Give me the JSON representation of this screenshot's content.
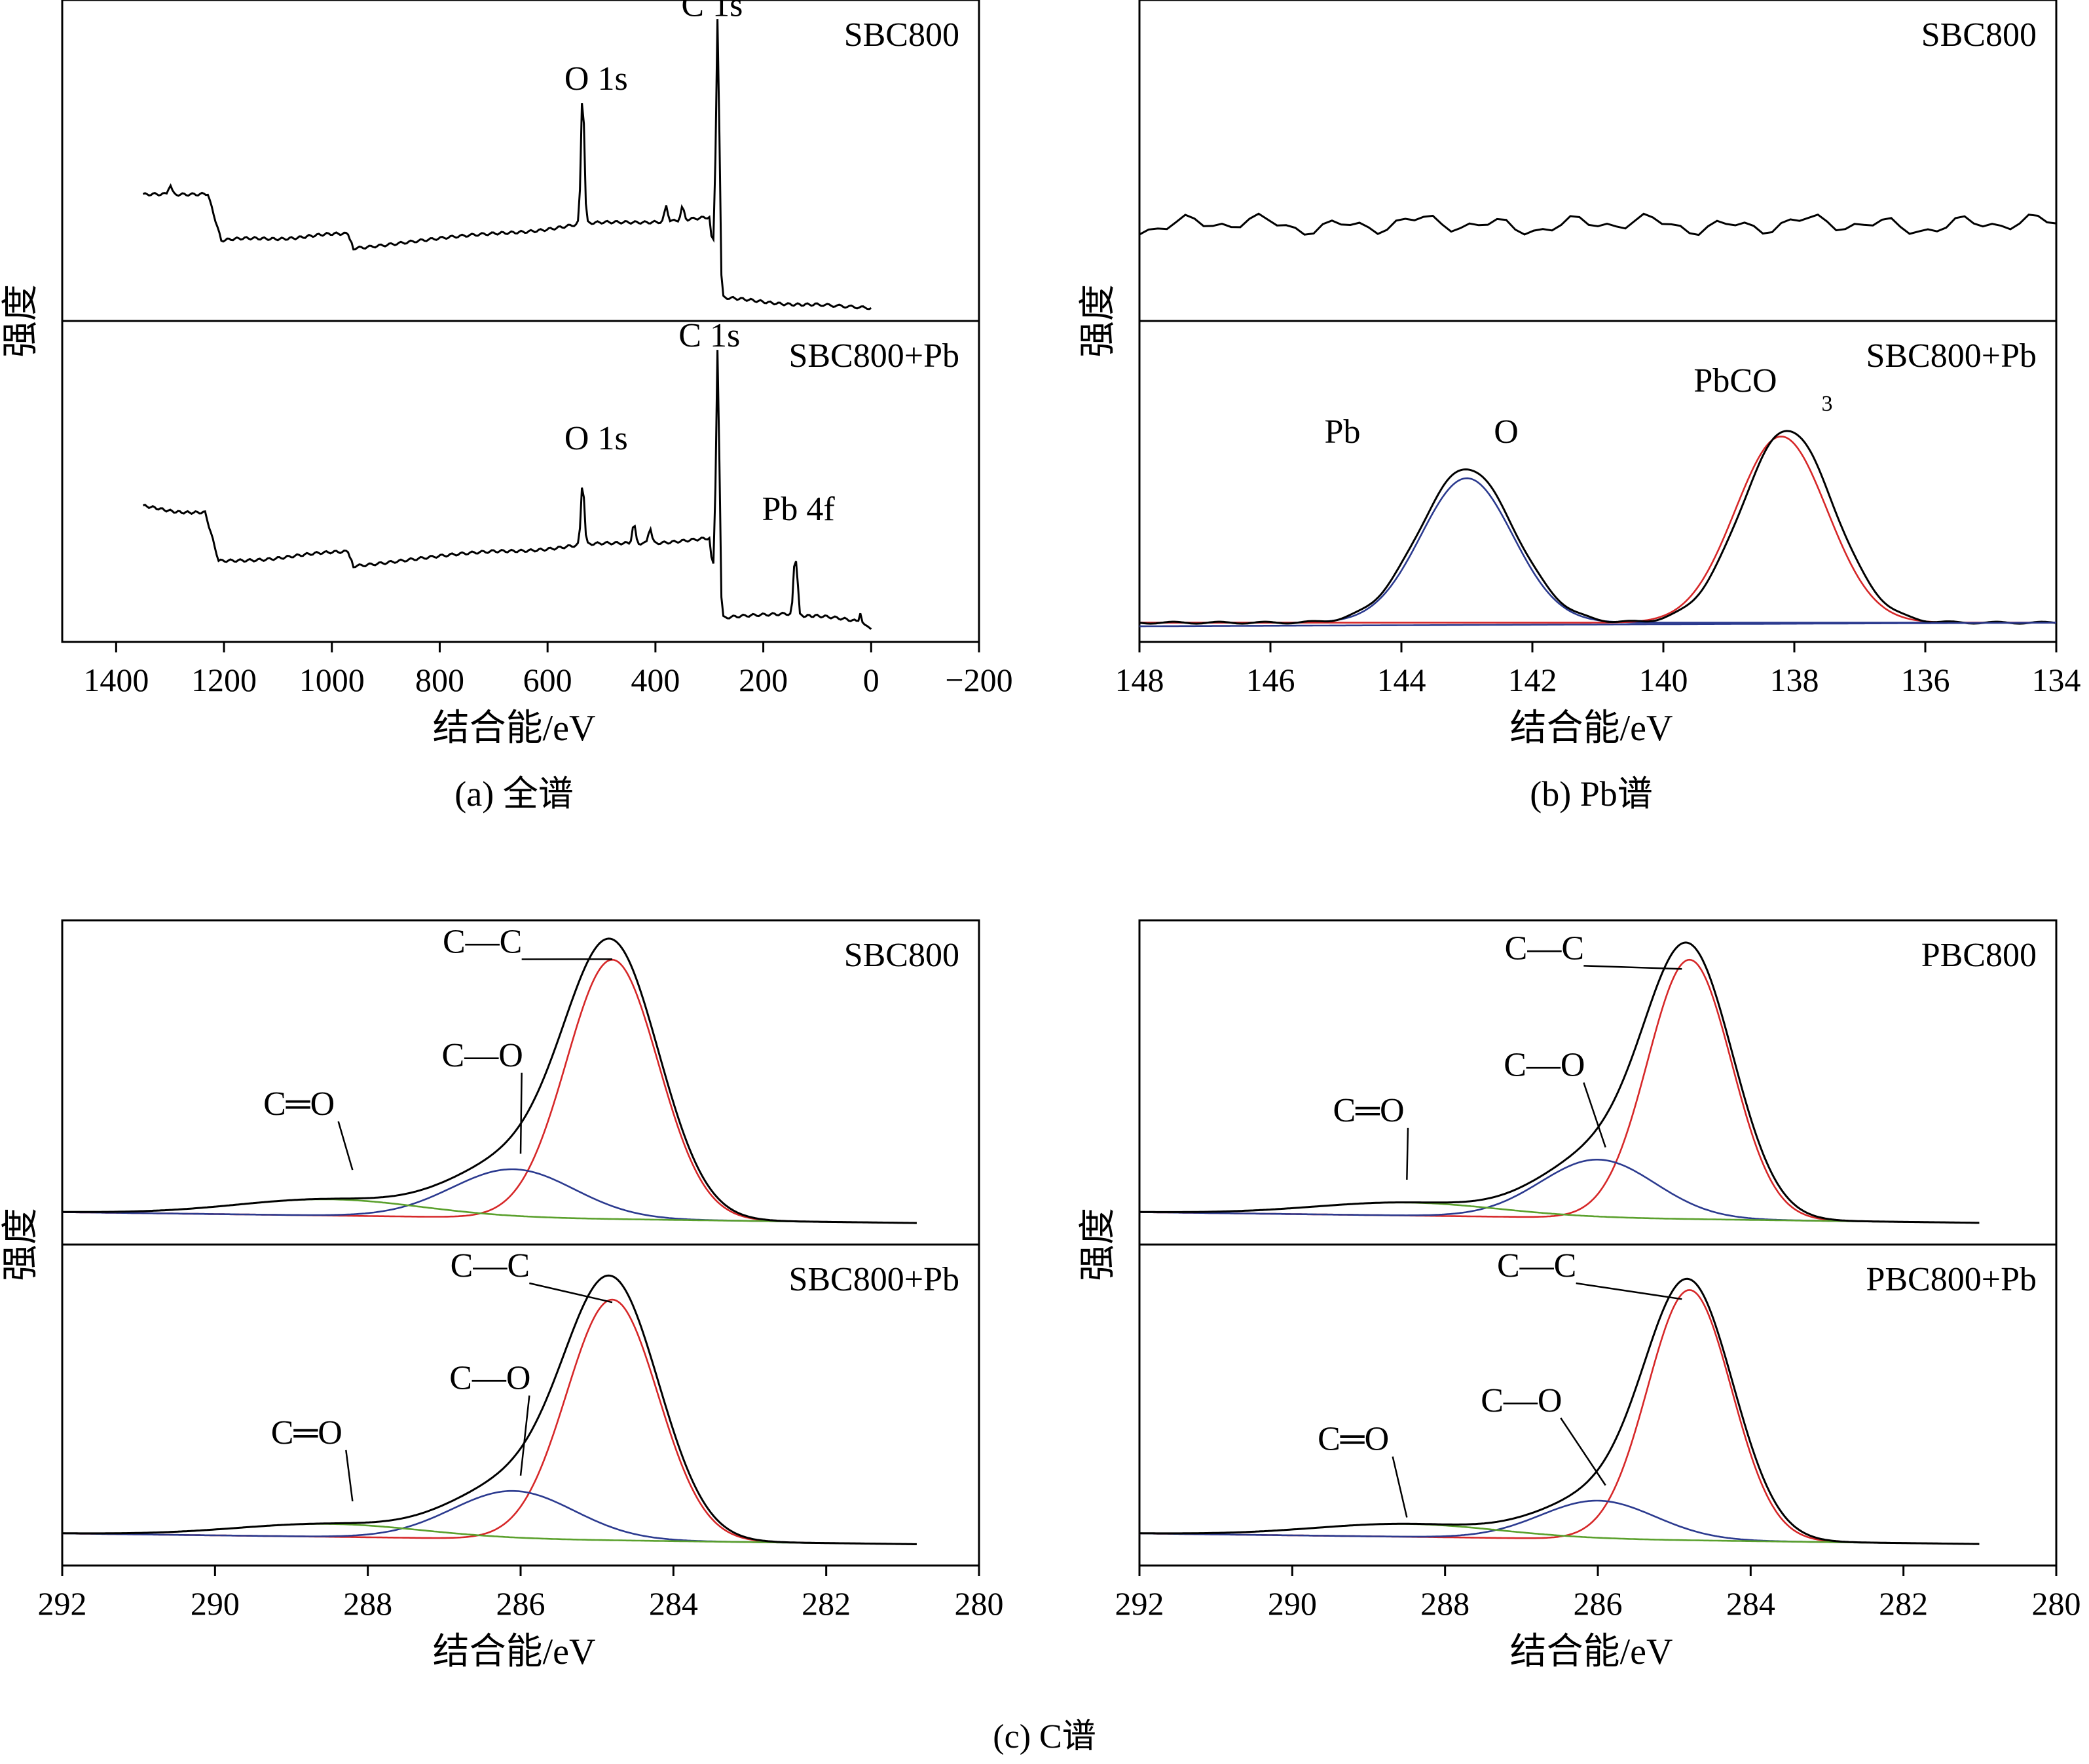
{
  "colors": {
    "raw": "#000000",
    "fit_main": "#d62728",
    "fit_secondary": "#2b3a8f",
    "baseline": "#5aa02c"
  },
  "chart_data": [
    {
      "id": "a",
      "type": "line",
      "caption": "(a) 全谱",
      "xlabel": "结合能/eV",
      "ylabel": "强度",
      "xlim": [
        1500,
        -200
      ],
      "xticks": [
        "1400",
        "1200",
        "1000",
        "800",
        "600",
        "400",
        "200",
        "0",
        "-200"
      ],
      "xtick_labels": [
        "1400",
        "1200",
        "1000",
        "800",
        "600",
        "400",
        "200",
        "0",
        "−200"
      ],
      "panels": [
        {
          "title": "SBC800",
          "series": [
            {
              "name": "survey",
              "role": "raw",
              "baseline": [
                [
                  1350,
                  0.39
                ],
                [
                  1230,
                  0.4
                ],
                [
                  1205,
                  0.25
                ],
                [
                  970,
                  0.27
                ],
                [
                  960,
                  0.23
                ],
                [
                  700,
                  0.27
                ],
                [
                  540,
                  0.3
                ],
                [
                  300,
                  0.32
                ],
                [
                  285,
                  0.07
                ],
                [
                  100,
                  0.05
                ],
                [
                  0,
                  0.04
                ]
              ],
              "peaks": [
                [
                  1300,
                  0.03,
                  3
                ],
                [
                  535,
                  0.42,
                  3
                ],
                [
                  380,
                  0.05,
                  3
                ],
                [
                  350,
                  0.04,
                  3
                ],
                [
                  290,
                  0.06,
                  2
                ],
                [
                  284.5,
                  0.88,
                  3
                ]
              ]
            }
          ],
          "labels": [
            {
              "text": "C 1s",
              "x": 295,
              "y": 0.95
            },
            {
              "text": "O 1s",
              "x": 510,
              "y": 0.72
            }
          ]
        },
        {
          "title": "SBC800+Pb",
          "series": [
            {
              "name": "survey",
              "role": "raw",
              "baseline": [
                [
                  1350,
                  0.42
                ],
                [
                  1235,
                  0.4
                ],
                [
                  1210,
                  0.25
                ],
                [
                  970,
                  0.28
                ],
                [
                  960,
                  0.24
                ],
                [
                  700,
                  0.28
                ],
                [
                  540,
                  0.3
                ],
                [
                  300,
                  0.32
                ],
                [
                  285,
                  0.07
                ],
                [
                  150,
                  0.09
                ],
                [
                  100,
                  0.08
                ],
                [
                  20,
                  0.06
                ],
                [
                  0,
                  0.04
                ]
              ],
              "peaks": [
                [
                  535,
                  0.2,
                  3
                ],
                [
                  440,
                  0.06,
                  3
                ],
                [
                  410,
                  0.05,
                  3
                ],
                [
                  290,
                  0.04,
                  2
                ],
                [
                  284.5,
                  0.85,
                  3
                ],
                [
                  143,
                  0.14,
                  2
                ],
                [
                  138,
                  0.18,
                  2
                ],
                [
                  20,
                  0.03,
                  2
                ]
              ]
            }
          ],
          "labels": [
            {
              "text": "C 1s",
              "x": 300,
              "y": 0.92
            },
            {
              "text": "O 1s",
              "x": 510,
              "y": 0.6
            },
            {
              "text": "Pb 4f",
              "x": 135,
              "y": 0.38
            }
          ]
        }
      ]
    },
    {
      "id": "b",
      "type": "line",
      "caption": "(b) Pb谱",
      "xlabel": "结合能/eV",
      "ylabel": "强度",
      "xlim": [
        148,
        134
      ],
      "xticks": [
        "148",
        "146",
        "144",
        "142",
        "140",
        "138",
        "136",
        "134"
      ],
      "xtick_labels": [
        "148",
        "146",
        "144",
        "142",
        "140",
        "138",
        "136",
        "134"
      ],
      "panels": [
        {
          "title": "SBC800",
          "series": [
            {
              "name": "noise",
              "role": "raw",
              "y_center": 0.3,
              "amplitude": 0.06
            }
          ],
          "labels": []
        },
        {
          "title": "SBC800+Pb",
          "series": [
            {
              "name": "Pb—O fit",
              "role": "fit_secondary",
              "components": [
                [
                  143.0,
                  0.45,
                  0.7
                ]
              ]
            },
            {
              "name": "PbCO3 fit",
              "role": "fit_main",
              "components": [
                [
                  138.2,
                  0.58,
                  0.7
                ]
              ]
            },
            {
              "name": "raw",
              "role": "raw",
              "components": [
                [
                  143.0,
                  0.48,
                  0.72
                ],
                [
                  138.1,
                  0.6,
                  0.7
                ]
              ]
            },
            {
              "name": "background",
              "role": "fit_secondary",
              "flat": true
            }
          ],
          "labels": [
            {
              "text": "Pb",
              "x": 144.9,
              "y": 0.62
            },
            {
              "text": "O",
              "x": 142.4,
              "y": 0.62
            },
            {
              "text": "PbCO",
              "x": 138.9,
              "y": 0.78
            },
            {
              "text": "3",
              "x": 137.5,
              "y": 0.72
            }
          ]
        }
      ]
    },
    {
      "id": "c1",
      "type": "line",
      "caption": "",
      "xlabel": "结合能/eV",
      "ylabel": "强度",
      "xlim": [
        292,
        280
      ],
      "xticks": [
        "292",
        "290",
        "288",
        "286",
        "284",
        "282",
        "280"
      ],
      "xtick_labels": [
        "292",
        "290",
        "288",
        "286",
        "284",
        "282",
        "280"
      ],
      "panels": [
        {
          "title": "SBC800",
          "series": [
            {
              "name": "C—C",
              "role": "fit_main",
              "components": [
                [
                  284.8,
                  0.8,
                  0.6
                ]
              ]
            },
            {
              "name": "C—O",
              "role": "fit_secondary",
              "components": [
                [
                  286.1,
                  0.15,
                  0.8
                ]
              ]
            },
            {
              "name": "C═O",
              "role": "baseline",
              "components": [
                [
                  288.5,
                  0.05,
                  1.2
                ]
              ]
            },
            {
              "name": "raw",
              "role": "raw",
              "components": [
                [
                  284.8,
                  0.82,
                  0.62
                ],
                [
                  286.1,
                  0.16,
                  0.8
                ],
                [
                  288.5,
                  0.05,
                  1.2
                ]
              ]
            }
          ],
          "labels": [
            {
              "text": "C—C",
              "x": 286.5,
              "y": 0.9,
              "leader_to": [
                284.8,
                0.88
              ]
            },
            {
              "text": "C—O",
              "x": 286.5,
              "y": 0.55,
              "leader_to": [
                286.0,
                0.28
              ]
            },
            {
              "text": "C═O",
              "x": 288.9,
              "y": 0.4,
              "leader_to": [
                288.2,
                0.23
              ]
            }
          ]
        },
        {
          "title": "SBC800+Pb",
          "series": [
            {
              "name": "C—C",
              "role": "fit_main",
              "components": [
                [
                  284.8,
                  0.75,
                  0.6
                ]
              ]
            },
            {
              "name": "C—O",
              "role": "fit_secondary",
              "components": [
                [
                  286.1,
                  0.15,
                  0.8
                ]
              ]
            },
            {
              "name": "C═O",
              "role": "baseline",
              "components": [
                [
                  288.5,
                  0.04,
                  1.2
                ]
              ]
            },
            {
              "name": "raw",
              "role": "raw",
              "components": [
                [
                  284.8,
                  0.78,
                  0.62
                ],
                [
                  286.1,
                  0.16,
                  0.8
                ],
                [
                  288.5,
                  0.04,
                  1.2
                ]
              ]
            }
          ],
          "labels": [
            {
              "text": "C—C",
              "x": 286.4,
              "y": 0.9,
              "leader_to": [
                284.8,
                0.82
              ]
            },
            {
              "text": "C—O",
              "x": 286.4,
              "y": 0.55,
              "leader_to": [
                286.0,
                0.28
              ]
            },
            {
              "text": "C═O",
              "x": 288.8,
              "y": 0.38,
              "leader_to": [
                288.2,
                0.2
              ]
            }
          ]
        }
      ]
    },
    {
      "id": "c2",
      "type": "line",
      "caption": "",
      "xlabel": "结合能/eV",
      "ylabel": "强度",
      "xlim": [
        292,
        280
      ],
      "xticks": [
        "292",
        "290",
        "288",
        "286",
        "284",
        "282",
        "280"
      ],
      "xtick_labels": [
        "292",
        "290",
        "288",
        "286",
        "284",
        "282",
        "280"
      ],
      "panels": [
        {
          "title": "PBC800",
          "series": [
            {
              "name": "C—C",
              "role": "fit_main",
              "components": [
                [
                  284.8,
                  0.8,
                  0.55
                ]
              ]
            },
            {
              "name": "C—O",
              "role": "fit_secondary",
              "components": [
                [
                  286.0,
                  0.18,
                  0.75
                ]
              ]
            },
            {
              "name": "C═O",
              "role": "baseline",
              "components": [
                [
                  288.5,
                  0.04,
                  1.2
                ]
              ]
            },
            {
              "name": "raw",
              "role": "raw",
              "components": [
                [
                  284.8,
                  0.8,
                  0.58
                ],
                [
                  286.0,
                  0.18,
                  0.75
                ],
                [
                  288.5,
                  0.04,
                  1.2
                ]
              ]
            }
          ],
          "labels": [
            {
              "text": "C—C",
              "x": 286.7,
              "y": 0.88,
              "leader_to": [
                284.9,
                0.85
              ]
            },
            {
              "text": "C—O",
              "x": 286.7,
              "y": 0.52,
              "leader_to": [
                285.9,
                0.3
              ]
            },
            {
              "text": "C═O",
              "x": 289.0,
              "y": 0.38,
              "leader_to": [
                288.5,
                0.2
              ]
            }
          ]
        },
        {
          "title": "PBC800+Pb",
          "series": [
            {
              "name": "C—C",
              "role": "fit_main",
              "components": [
                [
                  284.8,
                  0.78,
                  0.55
                ]
              ]
            },
            {
              "name": "C—O",
              "role": "fit_secondary",
              "components": [
                [
                  286.0,
                  0.12,
                  0.75
                ]
              ]
            },
            {
              "name": "C═O",
              "role": "baseline",
              "components": [
                [
                  288.5,
                  0.04,
                  1.2
                ]
              ]
            },
            {
              "name": "raw",
              "role": "raw",
              "components": [
                [
                  284.8,
                  0.78,
                  0.58
                ],
                [
                  286.0,
                  0.12,
                  0.75
                ],
                [
                  288.5,
                  0.04,
                  1.2
                ]
              ]
            }
          ],
          "labels": [
            {
              "text": "C—C",
              "x": 286.8,
              "y": 0.9,
              "leader_to": [
                284.9,
                0.83
              ]
            },
            {
              "text": "C—O",
              "x": 287.0,
              "y": 0.48,
              "leader_to": [
                285.9,
                0.25
              ]
            },
            {
              "text": "C═O",
              "x": 289.2,
              "y": 0.36,
              "leader_to": [
                288.5,
                0.15
              ]
            }
          ]
        }
      ]
    }
  ],
  "bottom_caption": "(c) C谱"
}
